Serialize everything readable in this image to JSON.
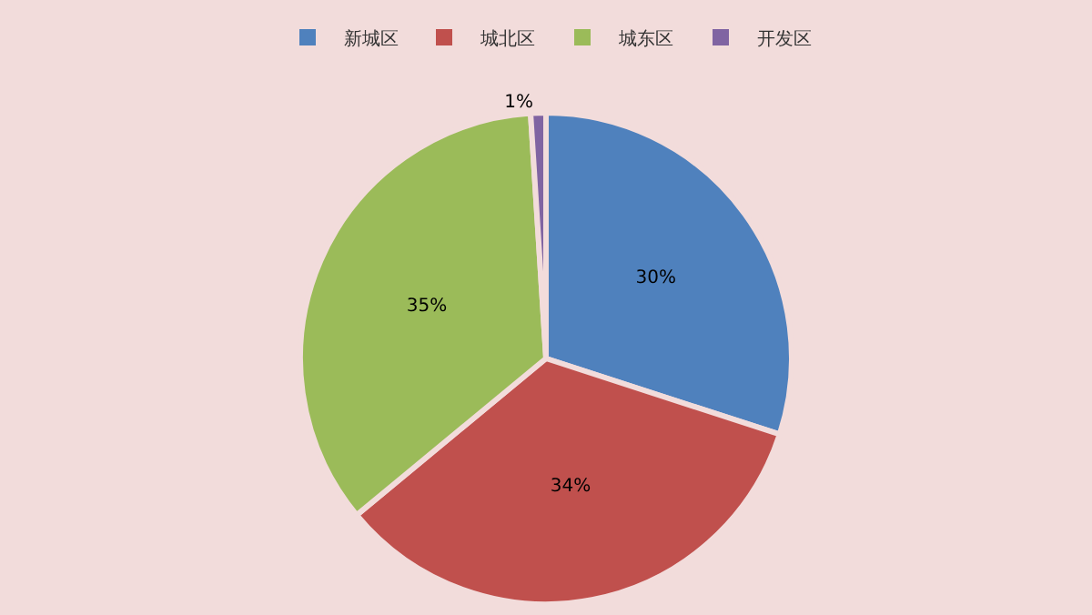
{
  "chart_data": {
    "type": "pie",
    "categories": [
      "新城区",
      "城北区",
      "城东区",
      "开发区"
    ],
    "values": [
      30,
      34,
      35,
      1
    ],
    "colors": [
      "#4f81bd",
      "#c0504d",
      "#9bbb59",
      "#8064a2"
    ],
    "value_labels": [
      "30%",
      "34%",
      "35%",
      "1%"
    ],
    "legend": "top"
  }
}
